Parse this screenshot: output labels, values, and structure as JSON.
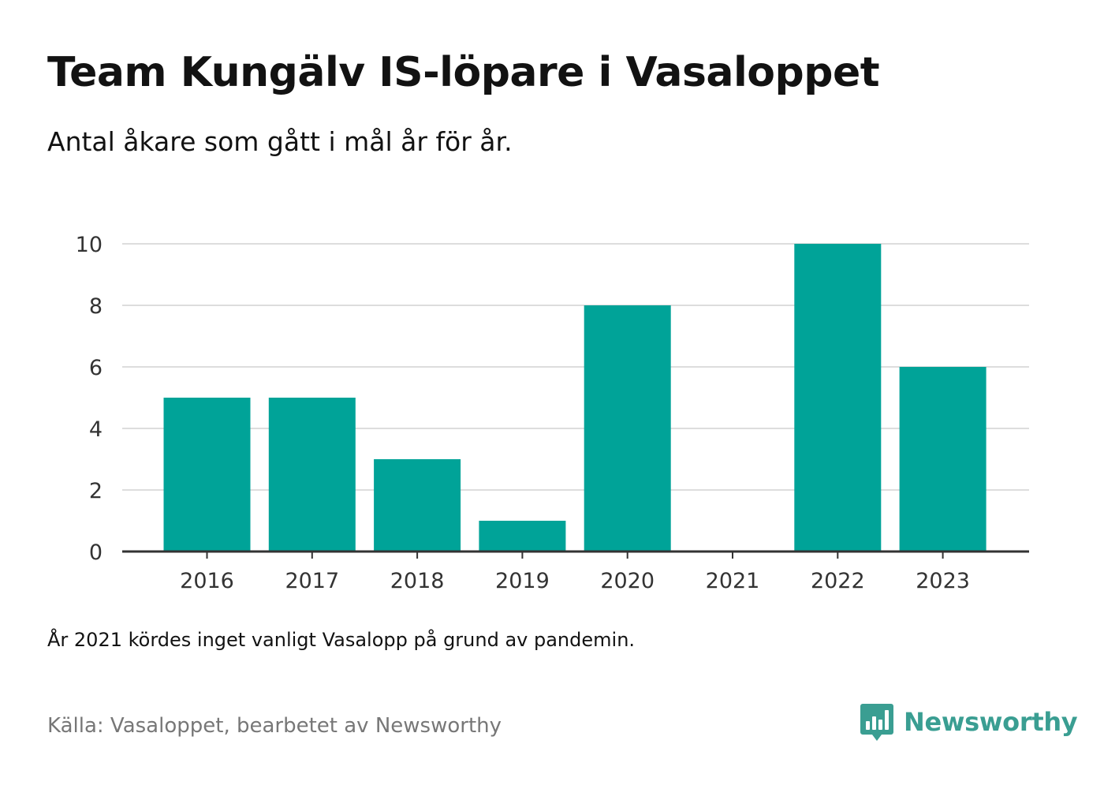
{
  "title": "Team Kungälv IS-löpare i Vasaloppet",
  "subtitle": "Antal åkare som gått i mål år för år.",
  "note": "År 2021 kördes inget vanligt Vasalopp på grund av pandemin.",
  "source": "Källa: Vasaloppet, bearbetet av Newsworthy",
  "brand": {
    "name": "Newsworthy",
    "color": "#3a9e92",
    "icon": "bar-chart-speech-bubble-icon"
  },
  "colors": {
    "bar": "#00a398",
    "grid": "#dddddd",
    "axis": "#333333"
  },
  "chart_data": {
    "type": "bar",
    "categories": [
      "2016",
      "2017",
      "2018",
      "2019",
      "2020",
      "2021",
      "2022",
      "2023"
    ],
    "values": [
      5,
      5,
      3,
      1,
      8,
      0,
      10,
      6
    ],
    "title": "Team Kungälv IS-löpare i Vasaloppet",
    "subtitle": "Antal åkare som gått i mål år för år.",
    "xlabel": "",
    "ylabel": "",
    "ylim": [
      0,
      10
    ],
    "yticks": [
      0,
      2,
      4,
      6,
      8,
      10
    ],
    "grid": true,
    "legend": "none"
  }
}
